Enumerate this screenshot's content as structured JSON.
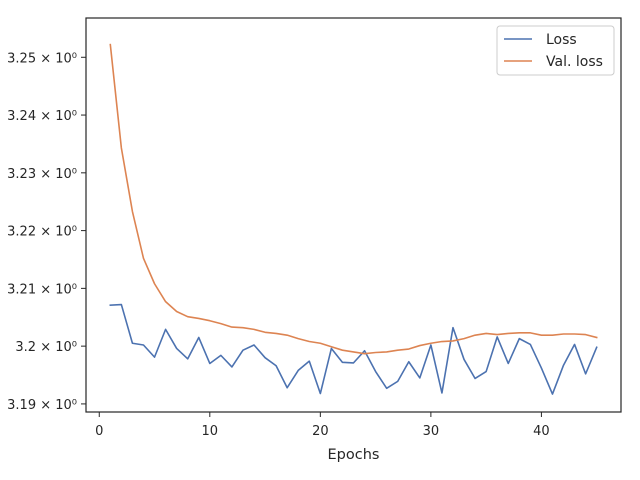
{
  "chart_data": {
    "type": "line",
    "title": "",
    "xlabel": "Epochs",
    "ylabel": "",
    "xlim": [
      -1.2,
      47.2
    ],
    "ylim": [
      3.1886,
      3.2568
    ],
    "x_ticks": [
      0,
      10,
      20,
      30,
      40
    ],
    "y_ticks": [
      {
        "value": 3.19,
        "label": "3.19 × 10⁰"
      },
      {
        "value": 3.2,
        "label": "3.2 × 10⁰"
      },
      {
        "value": 3.21,
        "label": "3.21 × 10⁰"
      },
      {
        "value": 3.22,
        "label": "3.22 × 10⁰"
      },
      {
        "value": 3.23,
        "label": "3.23 × 10⁰"
      },
      {
        "value": 3.24,
        "label": "3.24 × 10⁰"
      },
      {
        "value": 3.25,
        "label": "3.25 × 10⁰"
      }
    ],
    "grid": false,
    "legend_position": "top-right",
    "x": [
      1,
      2,
      3,
      4,
      5,
      6,
      7,
      8,
      9,
      10,
      11,
      12,
      13,
      14,
      15,
      16,
      17,
      18,
      19,
      20,
      21,
      22,
      23,
      24,
      25,
      26,
      27,
      28,
      29,
      30,
      31,
      32,
      33,
      34,
      35,
      36,
      37,
      38,
      39,
      40,
      41,
      42,
      43,
      44,
      45
    ],
    "series": [
      {
        "name": "Loss",
        "color": "#4c72b0",
        "values": [
          3.2071,
          3.2072,
          3.2005,
          3.2002,
          3.1981,
          3.2029,
          3.1996,
          3.1978,
          3.2015,
          3.197,
          3.1984,
          3.1964,
          3.1993,
          3.2002,
          3.198,
          3.1966,
          3.1928,
          3.1958,
          3.1974,
          3.1918,
          3.1996,
          3.1972,
          3.1971,
          3.1992,
          3.1956,
          3.1927,
          3.1939,
          3.1973,
          3.1945,
          3.2002,
          3.1919,
          3.2032,
          3.1977,
          3.1944,
          3.1956,
          3.2016,
          3.197,
          3.2013,
          3.2003,
          3.1962,
          3.1917,
          3.1967,
          3.2003,
          3.1952,
          3.1998
        ]
      },
      {
        "name": "Val. loss",
        "color": "#dd8452",
        "values": [
          3.2522,
          3.2343,
          3.2233,
          3.2152,
          3.2108,
          3.2077,
          3.206,
          3.2051,
          3.2048,
          3.2044,
          3.2039,
          3.2033,
          3.2032,
          3.2029,
          3.2024,
          3.2022,
          3.2019,
          3.2013,
          3.2008,
          3.2005,
          3.1999,
          3.1993,
          3.199,
          3.1987,
          3.1989,
          3.199,
          3.1993,
          3.1995,
          3.2001,
          3.2005,
          3.2008,
          3.2009,
          3.2013,
          3.2019,
          3.2022,
          3.202,
          3.2022,
          3.2023,
          3.2023,
          3.2019,
          3.2019,
          3.2021,
          3.2021,
          3.202,
          3.2015
        ]
      }
    ]
  }
}
